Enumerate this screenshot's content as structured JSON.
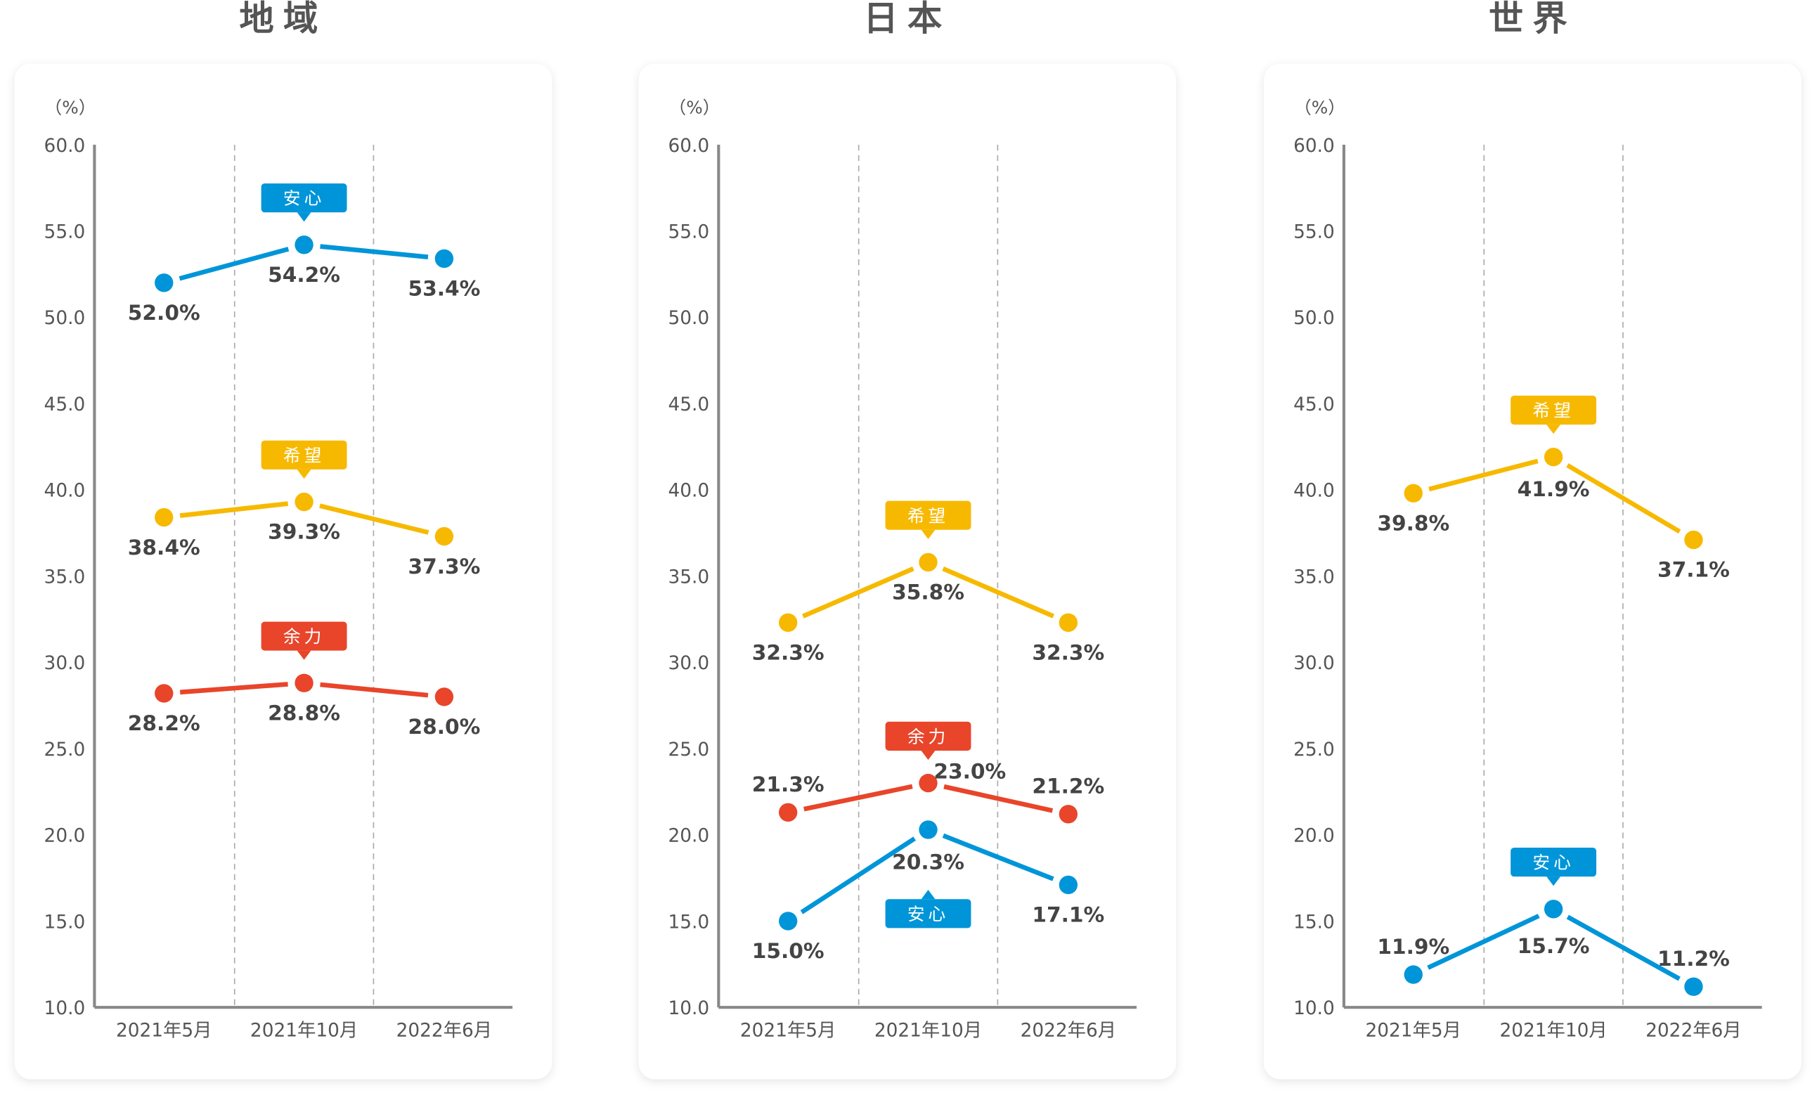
{
  "chart_data": [
    {
      "type": "line",
      "title": "地域",
      "unit_label": "（%）",
      "ylim": [
        10,
        60
      ],
      "yticks": [
        "60.0",
        "55.0",
        "50.0",
        "45.0",
        "40.0",
        "35.0",
        "30.0",
        "25.0",
        "20.0",
        "15.0",
        "10.0"
      ],
      "categories": [
        "2021年5月",
        "2021年10月",
        "2022年6月"
      ],
      "series": [
        {
          "name": "安心",
          "color": "#0095d9",
          "values": [
            52.0,
            54.2,
            53.4
          ],
          "labels": [
            "52.0%",
            "54.2%",
            "53.4%"
          ]
        },
        {
          "name": "希望",
          "color": "#f7b900",
          "values": [
            38.4,
            39.3,
            37.3
          ],
          "labels": [
            "38.4%",
            "39.3%",
            "37.3%"
          ]
        },
        {
          "name": "余力",
          "color": "#e8452a",
          "values": [
            28.2,
            28.8,
            28.0
          ],
          "labels": [
            "28.2%",
            "28.8%",
            "28.0%"
          ]
        }
      ]
    },
    {
      "type": "line",
      "title": "日本",
      "unit_label": "（%）",
      "ylim": [
        10,
        60
      ],
      "yticks": [
        "60.0",
        "55.0",
        "50.0",
        "45.0",
        "40.0",
        "35.0",
        "30.0",
        "25.0",
        "20.0",
        "15.0",
        "10.0"
      ],
      "categories": [
        "2021年5月",
        "2021年10月",
        "2022年6月"
      ],
      "series": [
        {
          "name": "希望",
          "color": "#f7b900",
          "values": [
            32.3,
            35.8,
            32.3
          ],
          "labels": [
            "32.3%",
            "35.8%",
            "32.3%"
          ]
        },
        {
          "name": "余力",
          "color": "#e8452a",
          "values": [
            21.3,
            23.0,
            21.2
          ],
          "labels": [
            "21.3%",
            "23.0%",
            "21.2%"
          ]
        },
        {
          "name": "安心",
          "color": "#0095d9",
          "values": [
            15.0,
            20.3,
            17.1
          ],
          "labels": [
            "15.0%",
            "20.3%",
            "17.1%"
          ]
        }
      ]
    },
    {
      "type": "line",
      "title": "世界",
      "unit_label": "（%）",
      "ylim": [
        10,
        60
      ],
      "yticks": [
        "60.0",
        "55.0",
        "50.0",
        "45.0",
        "40.0",
        "35.0",
        "30.0",
        "25.0",
        "20.0",
        "15.0",
        "10.0"
      ],
      "categories": [
        "2021年5月",
        "2021年10月",
        "2022年6月"
      ],
      "series": [
        {
          "name": "希望",
          "color": "#f7b900",
          "values": [
            39.8,
            41.9,
            37.1
          ],
          "labels": [
            "39.8%",
            "41.9%",
            "37.1%"
          ]
        },
        {
          "name": "安心",
          "color": "#0095d9",
          "values": [
            11.9,
            15.7,
            11.2
          ],
          "labels": [
            "11.9%",
            "15.7%",
            "11.2%"
          ]
        }
      ]
    }
  ]
}
